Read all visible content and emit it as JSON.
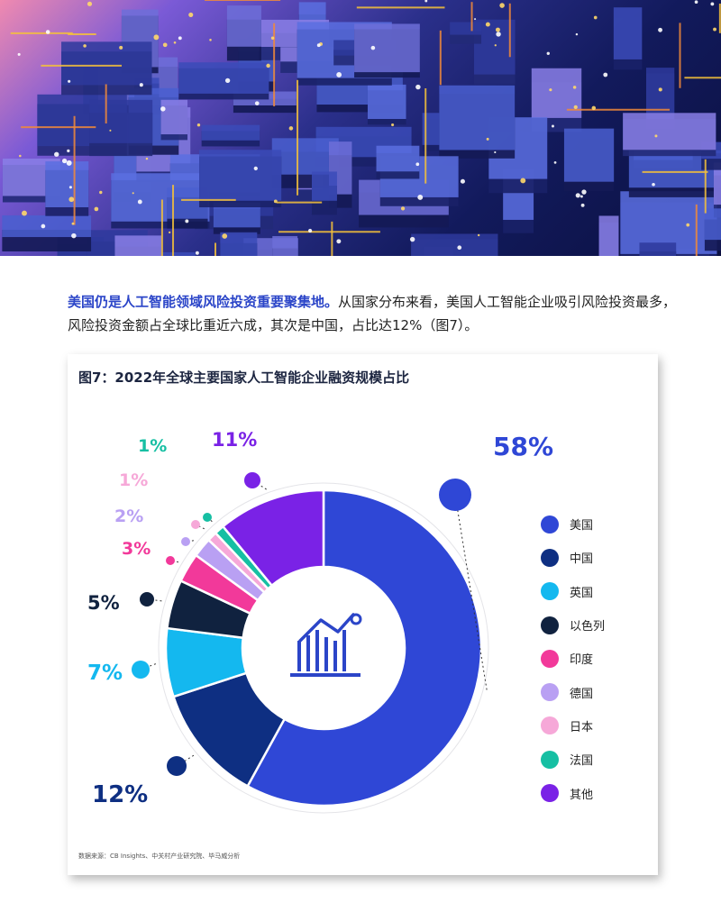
{
  "intro": {
    "highlight": "美国仍是人工智能领域风险投资重要聚集地。",
    "body": "从国家分布来看，美国人工智能企业吸引风险投资最多，风险投资金额占全球比重近六成，其次是中国，占比达12%（图7）。"
  },
  "chart_title": "图7：2022年全球主要国家人工智能企业融资规模占比",
  "source_note": "数据来源：CB Insights、中关村产业研究院、毕马威分析",
  "center_icon": "rising-bar-chart-icon",
  "hero_image": "circuit-board-photo",
  "chart_data": {
    "type": "pie",
    "title": "图7：2022年全球主要国家人工智能企业融资规模占比",
    "value_unit": "%",
    "donut": true,
    "legend_position": "right",
    "series": [
      {
        "label": "美国",
        "value": 58,
        "display": "58%",
        "color": "#2f47d6"
      },
      {
        "label": "中国",
        "value": 12,
        "display": "12%",
        "color": "#0e2f82"
      },
      {
        "label": "英国",
        "value": 7,
        "display": "7%",
        "color": "#14b8ef"
      },
      {
        "label": "以色列",
        "value": 5,
        "display": "5%",
        "color": "#10223f"
      },
      {
        "label": "印度",
        "value": 3,
        "display": "3%",
        "color": "#f2399a"
      },
      {
        "label": "德国",
        "value": 2,
        "display": "2%",
        "color": "#b9a0f3"
      },
      {
        "label": "日本",
        "value": 1,
        "display": "1%",
        "color": "#f6a8d8"
      },
      {
        "label": "法国",
        "value": 1,
        "display": "1%",
        "color": "#16bfa3"
      },
      {
        "label": "其他",
        "value": 11,
        "display": "11%",
        "color": "#7a22e6"
      }
    ]
  }
}
